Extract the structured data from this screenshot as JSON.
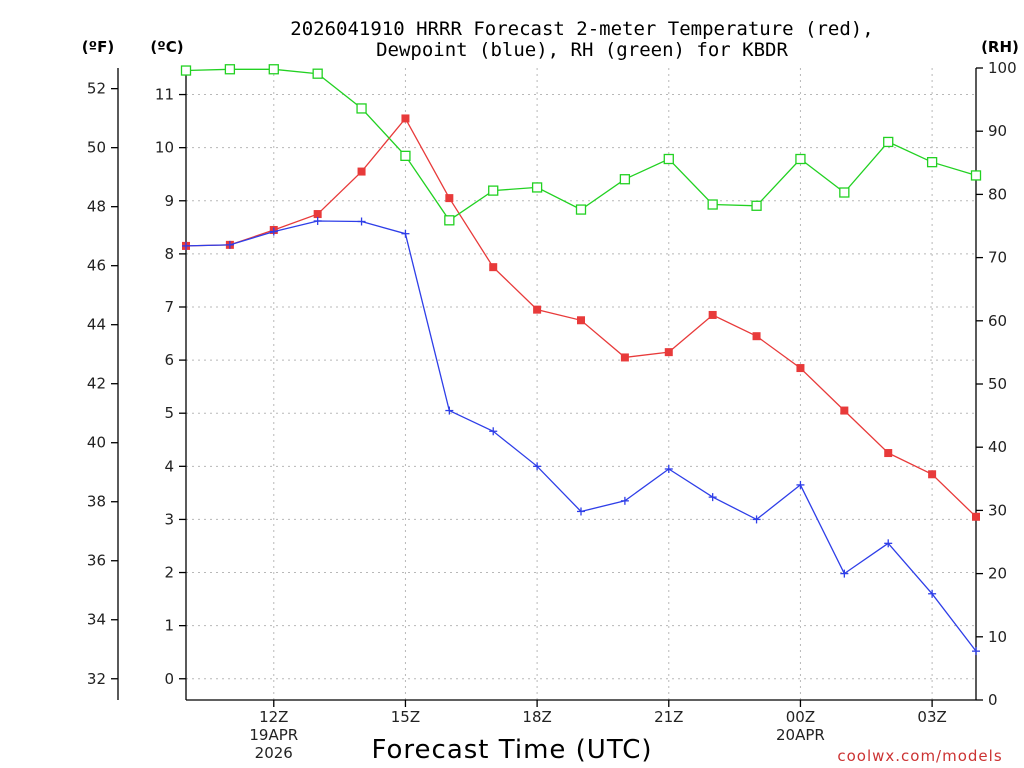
{
  "chart_data": {
    "type": "line",
    "title_line1": "2026041910 HRRR Forecast 2-meter Temperature (red),",
    "title_line2": "Dewpoint (blue), RH (green) for KBDR",
    "xlabel": "Forecast Time (UTC)",
    "credit": "coolwx.com/models",
    "units": {
      "fahrenheit": "(ºF)",
      "celsius": "(ºC)",
      "rh": "(RH)"
    },
    "x_hours": [
      10,
      11,
      12,
      13,
      14,
      15,
      16,
      17,
      18,
      19,
      20,
      21,
      22,
      23,
      24,
      25,
      26,
      27,
      28
    ],
    "x_ticks": [
      {
        "hour": 12,
        "lines": [
          "12Z",
          "19APR",
          "2026"
        ]
      },
      {
        "hour": 15,
        "lines": [
          "15Z"
        ]
      },
      {
        "hour": 18,
        "lines": [
          "18Z"
        ]
      },
      {
        "hour": 21,
        "lines": [
          "21Z"
        ]
      },
      {
        "hour": 24,
        "lines": [
          "00Z",
          "20APR"
        ]
      },
      {
        "hour": 27,
        "lines": [
          "03Z"
        ]
      }
    ],
    "xlim": [
      10,
      28
    ],
    "ylim_celsius": [
      -0.4,
      11.5
    ],
    "celsius_ticks": [
      0,
      1,
      2,
      3,
      4,
      5,
      6,
      7,
      8,
      9,
      10,
      11
    ],
    "fahrenheit_ticks": [
      32,
      34,
      36,
      38,
      40,
      42,
      44,
      46,
      48,
      50,
      52
    ],
    "ylim_rh": [
      0,
      100
    ],
    "rh_ticks": [
      0,
      10,
      20,
      30,
      40,
      50,
      60,
      70,
      80,
      90,
      100
    ],
    "series": [
      {
        "name": "Temperature",
        "axis": "celsius",
        "color": "#e83a3a",
        "marker": "filled-square",
        "values": [
          8.15,
          8.17,
          8.45,
          8.75,
          9.55,
          10.55,
          9.05,
          7.75,
          6.95,
          6.75,
          6.05,
          6.15,
          6.85,
          6.45,
          5.85,
          5.05,
          4.25,
          3.85,
          3.05
        ]
      },
      {
        "name": "Dewpoint",
        "axis": "celsius",
        "color": "#2e3ee8",
        "marker": "plus",
        "values": [
          8.15,
          8.17,
          8.42,
          8.62,
          8.61,
          8.38,
          5.05,
          4.66,
          4.0,
          3.15,
          3.35,
          3.95,
          3.42,
          3.0,
          3.65,
          1.98,
          2.55,
          1.6,
          0.52
        ]
      },
      {
        "name": "RH",
        "axis": "rh",
        "color": "#22d122",
        "marker": "open-square",
        "values": [
          99.6,
          99.8,
          99.8,
          99.1,
          93.6,
          86.1,
          75.9,
          80.6,
          81.1,
          77.6,
          82.4,
          85.6,
          78.4,
          78.2,
          85.6,
          80.3,
          88.3,
          85.1,
          83.0
        ]
      }
    ]
  }
}
